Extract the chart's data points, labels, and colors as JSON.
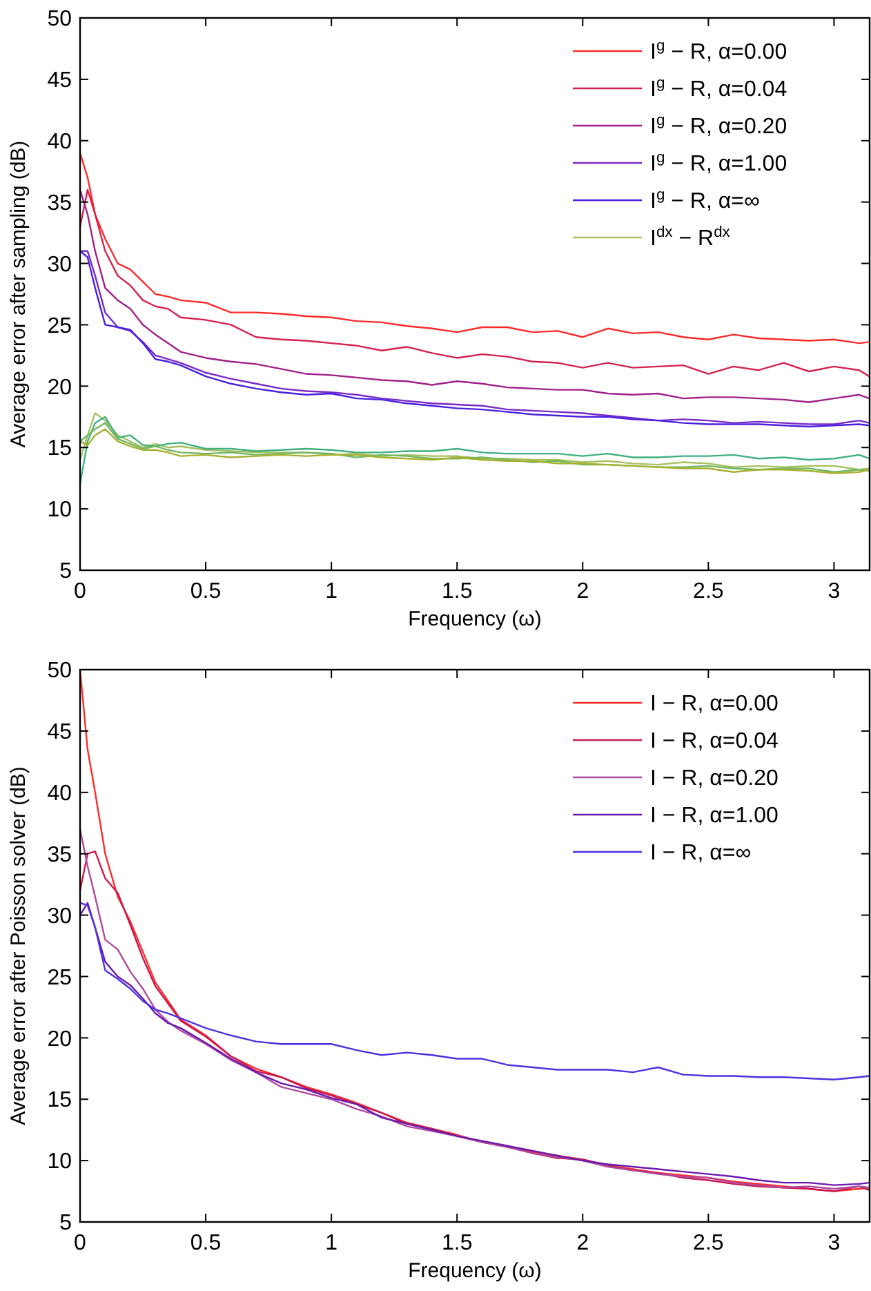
{
  "chart_data": [
    {
      "type": "line",
      "xlabel": "Frequency (ω)",
      "ylabel": "Average error after sampling (dB)",
      "xlim": [
        0,
        3.1416
      ],
      "ylim": [
        5,
        50
      ],
      "xticks": [
        0,
        0.5,
        1,
        1.5,
        2,
        2.5,
        3
      ],
      "yticks": [
        5,
        10,
        15,
        20,
        25,
        30,
        35,
        40,
        45,
        50
      ],
      "grid": false,
      "legend": "top right",
      "x": [
        0,
        0.03,
        0.06,
        0.1,
        0.15,
        0.2,
        0.25,
        0.3,
        0.35,
        0.4,
        0.5,
        0.6,
        0.7,
        0.8,
        0.9,
        1.0,
        1.1,
        1.2,
        1.3,
        1.4,
        1.5,
        1.6,
        1.7,
        1.8,
        1.9,
        2.0,
        2.1,
        2.2,
        2.3,
        2.4,
        2.5,
        2.6,
        2.7,
        2.8,
        2.9,
        3.0,
        3.1,
        3.14
      ],
      "series": [
        {
          "name": "I$^{g}$ − R, α=0.00",
          "color": "#ff2a2a",
          "values": [
            39,
            37,
            34,
            32,
            30,
            29.5,
            28.5,
            27.5,
            27.3,
            27,
            26.8,
            26,
            26,
            25.9,
            25.7,
            25.6,
            25.3,
            25.2,
            24.9,
            24.7,
            24.4,
            24.8,
            24.8,
            24.4,
            24.5,
            24,
            24.7,
            24.3,
            24.4,
            24,
            23.8,
            24.2,
            23.9,
            23.8,
            23.7,
            23.8,
            23.5,
            23.6
          ]
        },
        {
          "name": "I$^{g}$ − R, α=0.04",
          "color": "#d6204f",
          "values": [
            33,
            36,
            34,
            31,
            29,
            28.2,
            27,
            26.5,
            26.3,
            25.6,
            25.4,
            25,
            24,
            23.8,
            23.7,
            23.5,
            23.3,
            22.9,
            23.2,
            22.7,
            22.3,
            22.6,
            22.4,
            22,
            21.9,
            21.5,
            21.9,
            21.5,
            21.6,
            21.7,
            21,
            21.6,
            21.3,
            21.9,
            21.2,
            21.6,
            21.3,
            20.8
          ]
        },
        {
          "name": "I$^{g}$ − R, α=0.20",
          "color": "#a0208a",
          "values": [
            36,
            34,
            31,
            28,
            27,
            26.3,
            25,
            24.2,
            23.5,
            22.8,
            22.3,
            22,
            21.8,
            21.4,
            21,
            20.9,
            20.7,
            20.5,
            20.4,
            20.1,
            20.4,
            20.2,
            19.9,
            19.8,
            19.7,
            19.7,
            19.4,
            19.3,
            19.4,
            19,
            19.1,
            19.1,
            19,
            18.9,
            18.7,
            19,
            19.3,
            19
          ]
        },
        {
          "name": "I$^{g}$ − R, α=1.00",
          "color": "#7a2ac8",
          "values": [
            31,
            31,
            29,
            26,
            24.8,
            24.5,
            23.6,
            22.5,
            22.2,
            21.9,
            21.1,
            20.6,
            20.2,
            19.8,
            19.6,
            19.5,
            19.3,
            19,
            18.8,
            18.6,
            18.5,
            18.4,
            18.1,
            18,
            17.9,
            17.8,
            17.6,
            17.4,
            17.2,
            17.3,
            17.2,
            17,
            17.1,
            17,
            16.9,
            16.9,
            17.2,
            17
          ]
        },
        {
          "name": "I$^{g}$ − R, α=∞",
          "color": "#4a20e0",
          "values": [
            31,
            30.5,
            28,
            25,
            24.8,
            24.6,
            23.5,
            22.2,
            22,
            21.7,
            20.8,
            20.2,
            19.8,
            19.5,
            19.3,
            19.4,
            19,
            18.9,
            18.6,
            18.4,
            18.2,
            18.1,
            17.9,
            17.7,
            17.6,
            17.5,
            17.5,
            17.3,
            17.2,
            17,
            16.9,
            16.9,
            16.9,
            16.8,
            16.7,
            16.8,
            16.9,
            16.8
          ]
        },
        {
          "name": "I$^{dx}$ − R$^{dx}$",
          "color": "#a8c060",
          "values": [
            14,
            16,
            17.8,
            17.2,
            16,
            15.5,
            15,
            15.3,
            15,
            15.1,
            14.8,
            14.7,
            14.6,
            14.6,
            14.6,
            14.4,
            14.5,
            14.3,
            14.4,
            14.3,
            14.3,
            14.1,
            14.1,
            14,
            14,
            13.8,
            13.9,
            13.7,
            13.6,
            13.8,
            13.7,
            13.4,
            13.5,
            13.4,
            13.5,
            13.5,
            13.2,
            13.3
          ]
        },
        {
          "color": "#40b080",
          "values": [
            12,
            15.5,
            17,
            17.5,
            15.8,
            16,
            15.2,
            15.1,
            15.3,
            15.4,
            14.9,
            14.9,
            14.7,
            14.8,
            14.9,
            14.8,
            14.6,
            14.6,
            14.7,
            14.7,
            14.9,
            14.6,
            14.5,
            14.5,
            14.5,
            14.3,
            14.5,
            14.2,
            14.2,
            14.3,
            14.3,
            14.4,
            14.1,
            14.2,
            14,
            14.1,
            14.4,
            14.1
          ]
        },
        {
          "color": "#70b860",
          "values": [
            15.5,
            16,
            16.5,
            17,
            15.7,
            15.3,
            14.9,
            15.1,
            14.8,
            14.6,
            14.5,
            14.6,
            14.4,
            14.5,
            14.6,
            14.5,
            14.2,
            14.4,
            14.3,
            14.1,
            14.1,
            14.2,
            14,
            13.8,
            13.9,
            13.6,
            13.6,
            13.5,
            13.4,
            13.4,
            13.5,
            13.3,
            13.2,
            13.3,
            13.3,
            13,
            13.2,
            13.1
          ]
        },
        {
          "color": "#a8b030",
          "values": [
            15.5,
            15.2,
            16,
            16.5,
            15.5,
            15.1,
            14.8,
            14.8,
            14.6,
            14.3,
            14.4,
            14.2,
            14.3,
            14.4,
            14.3,
            14.4,
            14.4,
            14.2,
            14.1,
            14,
            14.2,
            14,
            13.9,
            13.9,
            13.7,
            13.7,
            13.6,
            13.5,
            13.4,
            13.3,
            13.3,
            13,
            13.2,
            13.2,
            13.1,
            12.9,
            13,
            13.2
          ]
        }
      ]
    },
    {
      "type": "line",
      "xlabel": "Frequency (ω)",
      "ylabel": "Average error after Poisson solver (dB)",
      "xlim": [
        0,
        3.1416
      ],
      "ylim": [
        5,
        50
      ],
      "xticks": [
        0,
        0.5,
        1,
        1.5,
        2,
        2.5,
        3
      ],
      "yticks": [
        5,
        10,
        15,
        20,
        25,
        30,
        35,
        40,
        45,
        50
      ],
      "grid": false,
      "legend": "top right",
      "x": [
        0,
        0.03,
        0.06,
        0.1,
        0.15,
        0.2,
        0.25,
        0.3,
        0.35,
        0.4,
        0.5,
        0.6,
        0.7,
        0.8,
        0.9,
        1.0,
        1.1,
        1.2,
        1.3,
        1.4,
        1.5,
        1.6,
        1.7,
        1.8,
        1.9,
        2.0,
        2.1,
        2.2,
        2.3,
        2.4,
        2.5,
        2.6,
        2.7,
        2.8,
        2.9,
        3.0,
        3.1,
        3.14
      ],
      "series": [
        {
          "name": "I − R, α=0.00",
          "color": "#ff2a2a",
          "values": [
            50,
            43.5,
            40,
            35,
            31.5,
            29.5,
            27,
            24.5,
            23,
            21.5,
            20.2,
            18.5,
            17.5,
            16.8,
            16,
            15.4,
            14.7,
            13.9,
            13.1,
            12.6,
            12.1,
            11.5,
            11.1,
            10.7,
            10.4,
            10.1,
            9.6,
            9.3,
            9,
            8.8,
            8.6,
            8.3,
            8.1,
            7.9,
            7.7,
            7.5,
            7.7,
            7.8
          ]
        },
        {
          "name": "I − R, α=0.04",
          "color": "#c81a50",
          "values": [
            32,
            35,
            35.2,
            33,
            31.8,
            29.2,
            26.5,
            24.2,
            22.8,
            21.4,
            20.1,
            18.5,
            17.3,
            16.8,
            15.9,
            15.3,
            14.6,
            13.9,
            13,
            12.6,
            12,
            11.5,
            11.2,
            10.6,
            10.2,
            10.1,
            9.6,
            9.2,
            9,
            8.6,
            8.4,
            8.1,
            7.9,
            7.8,
            7.7,
            7.5,
            7.9,
            7.6
          ]
        },
        {
          "name": "I − R, α=0.20",
          "color": "#b04aa0",
          "values": [
            37,
            34,
            31.5,
            28,
            27.2,
            25.4,
            24,
            22.3,
            21.3,
            20.6,
            19.5,
            18.2,
            17.2,
            16,
            15.5,
            15,
            14.2,
            13.6,
            12.8,
            12.4,
            12,
            11.5,
            11.1,
            10.6,
            10.3,
            10,
            9.5,
            9.2,
            8.9,
            8.7,
            8.6,
            8.2,
            8,
            7.8,
            7.9,
            7.7,
            7.9,
            7.8
          ]
        },
        {
          "name": "I − R, α=1.00",
          "color": "#6a1ab0",
          "values": [
            30,
            31,
            29,
            26.2,
            25,
            24.3,
            23.2,
            22,
            21.2,
            20.8,
            19.6,
            18.3,
            17.2,
            16.3,
            15.8,
            15.1,
            14.6,
            13.5,
            13,
            12.5,
            12,
            11.6,
            11.2,
            10.8,
            10.4,
            10,
            9.7,
            9.5,
            9.3,
            9.1,
            8.9,
            8.7,
            8.4,
            8.2,
            8.2,
            8,
            8.1,
            8.2
          ]
        },
        {
          "name": "I − R, α=∞",
          "color": "#5030e0",
          "values": [
            31,
            30.8,
            29,
            25.5,
            24.8,
            24,
            23,
            22.3,
            22,
            21.6,
            20.8,
            20.2,
            19.7,
            19.5,
            19.5,
            19.5,
            19,
            18.6,
            18.8,
            18.6,
            18.3,
            18.3,
            17.8,
            17.6,
            17.4,
            17.4,
            17.4,
            17.2,
            17.6,
            17,
            16.9,
            16.9,
            16.8,
            16.8,
            16.7,
            16.6,
            16.8,
            16.9
          ]
        }
      ]
    }
  ]
}
